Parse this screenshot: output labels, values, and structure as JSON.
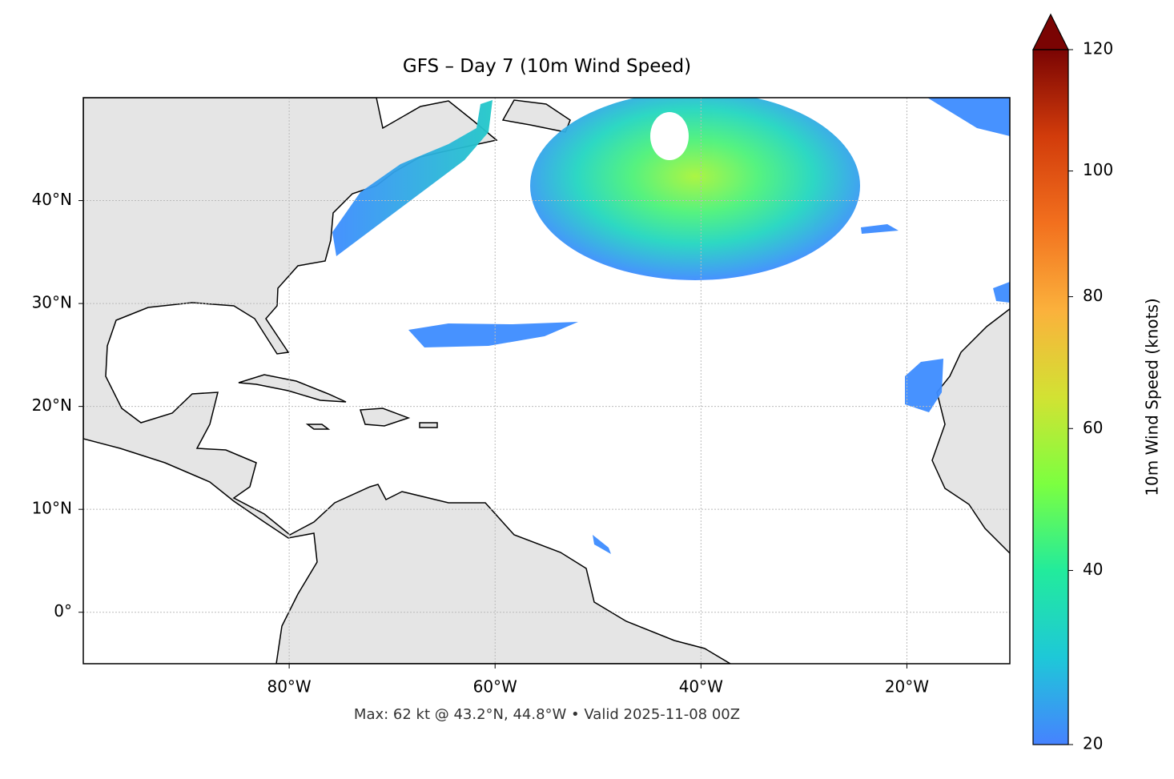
{
  "title": "GFS – Day 7 (10m Wind Speed)",
  "footer": "Max: 62 kt @ 43.2°N, 44.8°W • Valid 2025-11-08 00Z",
  "map": {
    "xlim": [
      -100,
      -10
    ],
    "ylim": [
      -5,
      50
    ],
    "xticks": [
      {
        "value": -80,
        "label": "80°W"
      },
      {
        "value": -60,
        "label": "60°W"
      },
      {
        "value": -40,
        "label": "40°W"
      },
      {
        "value": -20,
        "label": "20°W"
      }
    ],
    "yticks": [
      {
        "value": 0,
        "label": "0°"
      },
      {
        "value": 10,
        "label": "10°N"
      },
      {
        "value": 20,
        "label": "20°N"
      },
      {
        "value": 30,
        "label": "30°N"
      },
      {
        "value": 40,
        "label": "40°N"
      }
    ],
    "grid": true
  },
  "colorbar": {
    "label": "10m Wind Speed (knots)",
    "lim": [
      20,
      120
    ],
    "ticks": [
      20,
      40,
      60,
      80,
      100,
      120
    ],
    "norm": "power",
    "gamma": 0.86,
    "extend": "max",
    "colors": [
      "#4682ff",
      "#1ec8d8",
      "#22eb9c",
      "#7cff40",
      "#d2e233",
      "#fbb13c",
      "#f2701e",
      "#d23c0b",
      "#7a0403"
    ]
  }
}
